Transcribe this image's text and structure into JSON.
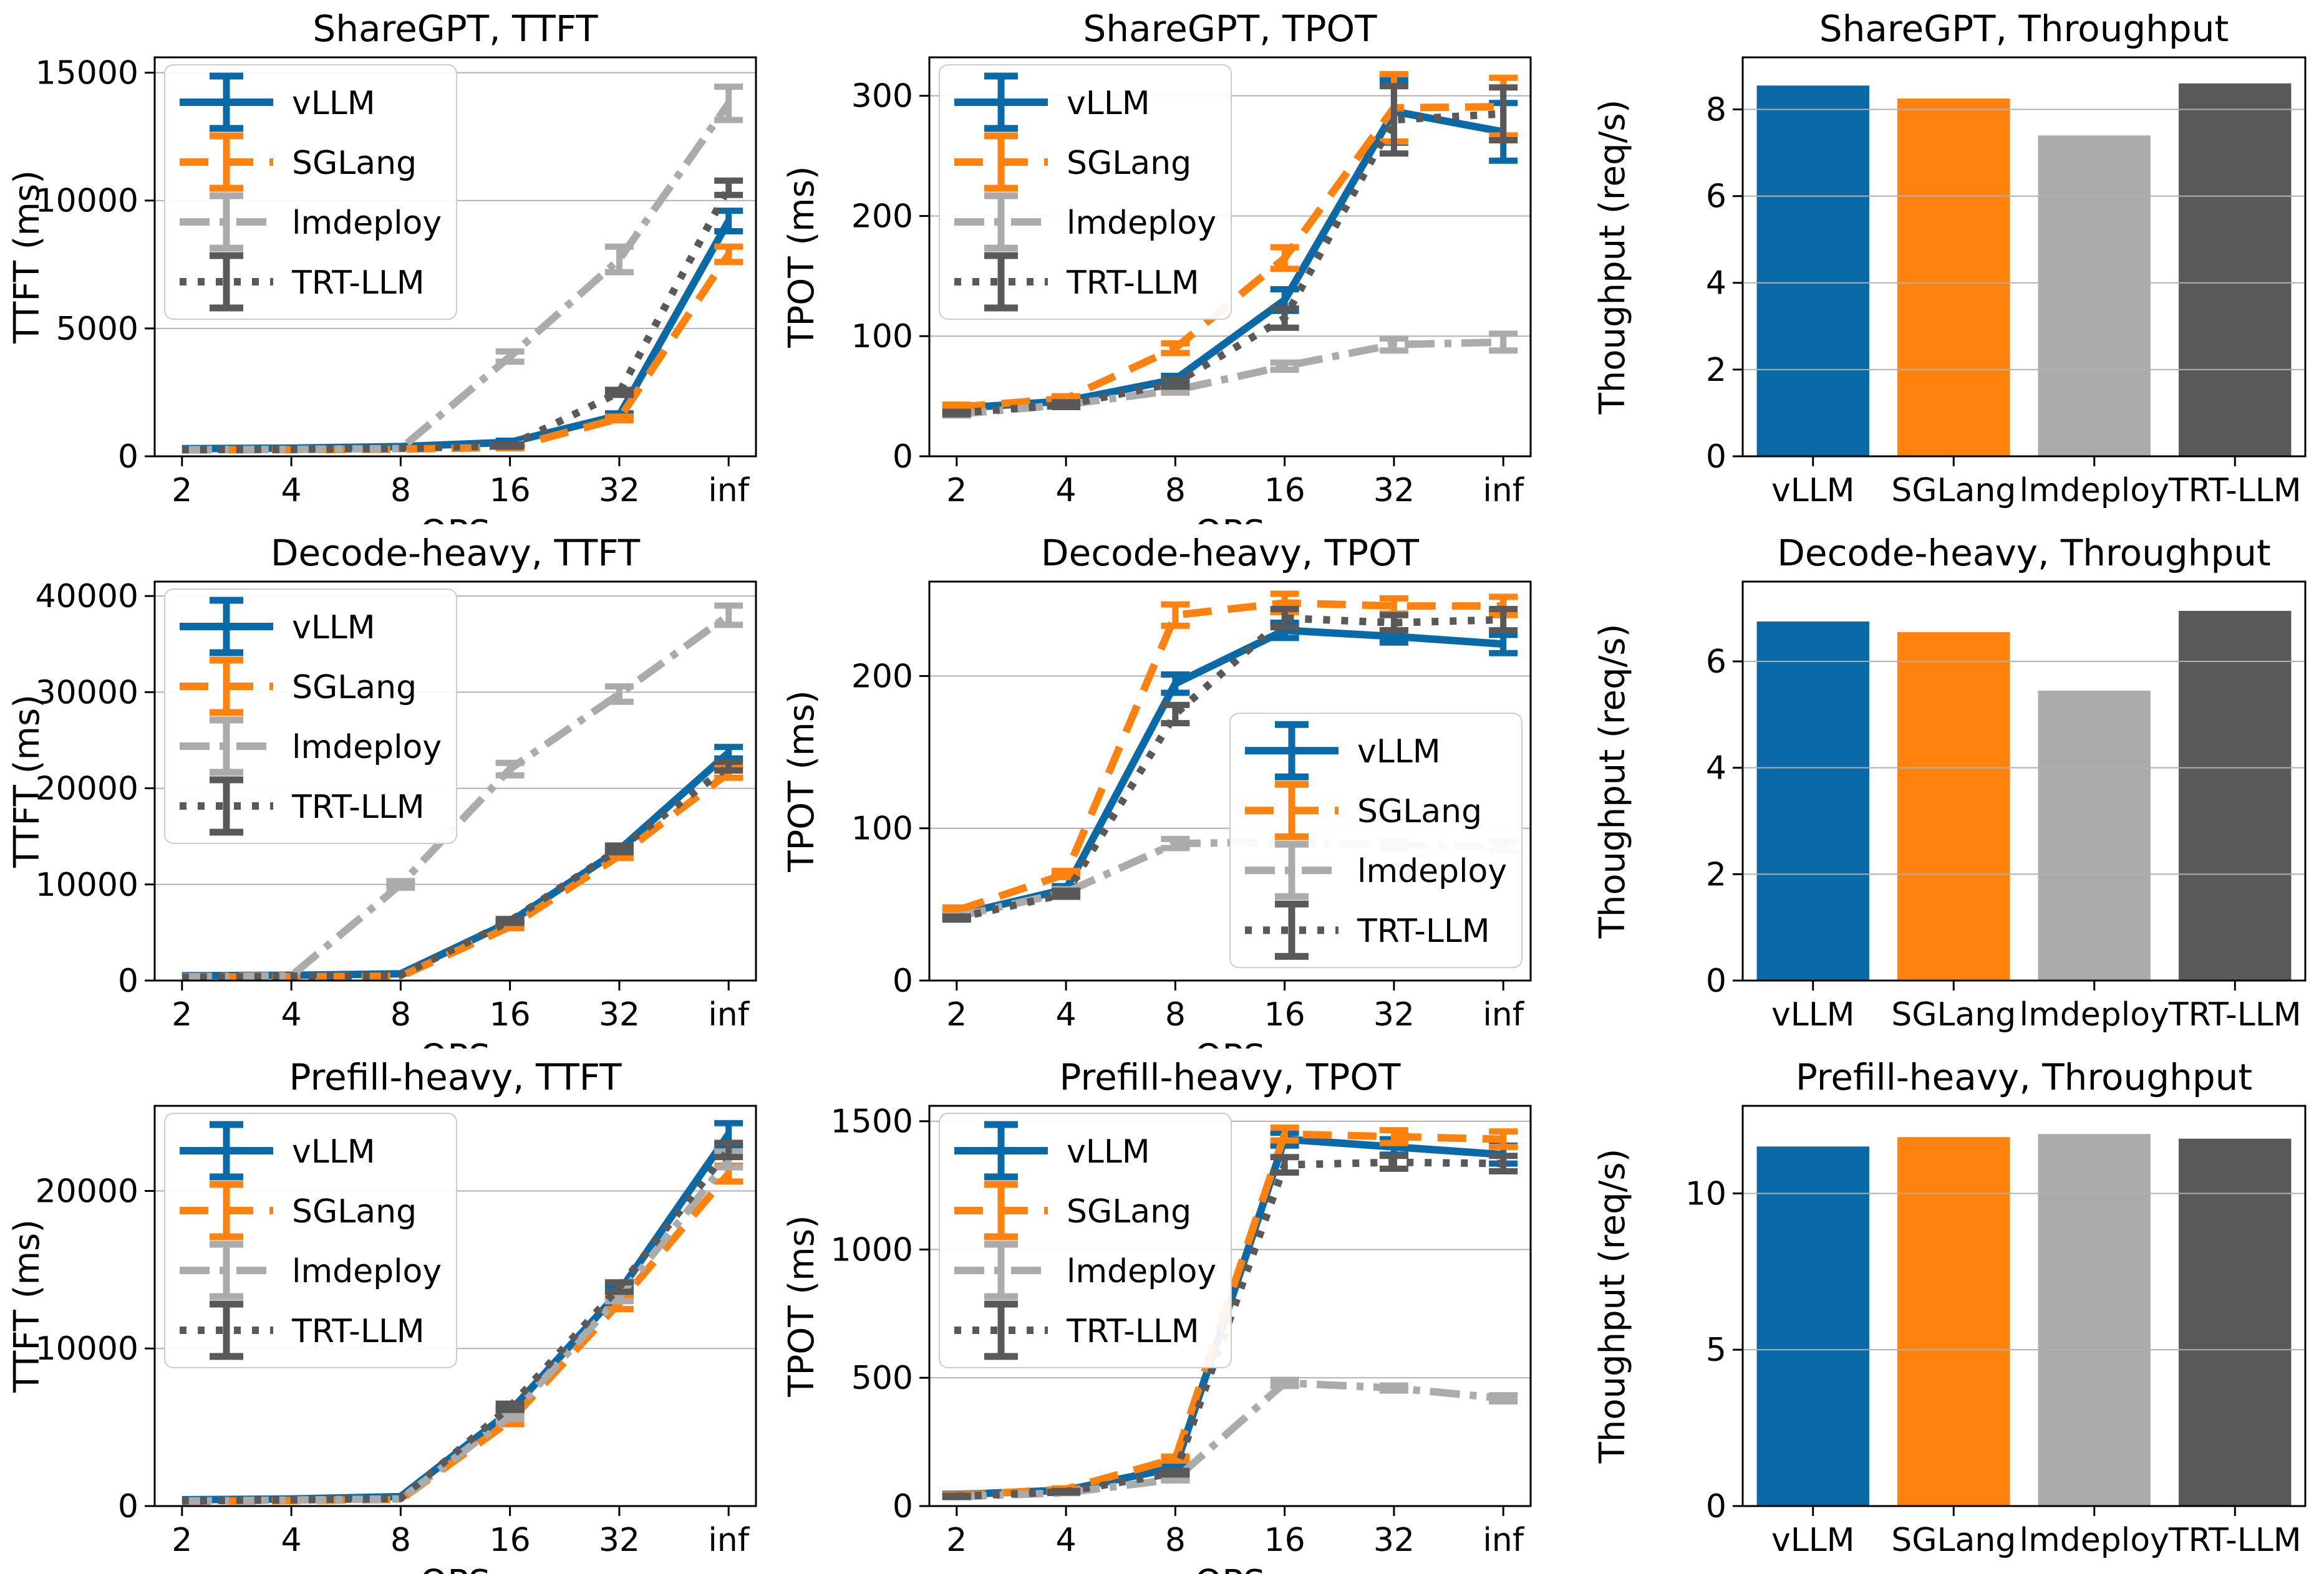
{
  "figure": {
    "background": "#ffffff",
    "axis_color": "#000000",
    "grid_color": "#b0b0b0",
    "series_colors": {
      "vLLM": "#0a6aa8",
      "SGLang": "#ff820e",
      "lmdeploy": "#ababab",
      "TRT-LLM": "#595959"
    }
  },
  "chart_data": [
    {
      "id": "sharegpt-ttft",
      "type": "line",
      "title": "ShareGPT, TTFT",
      "xlabel": "QPS",
      "ylabel": "TTFT (ms)",
      "x_categories": [
        "2",
        "4",
        "8",
        "16",
        "32",
        "inf"
      ],
      "yticks": [
        0,
        5000,
        10000,
        15000
      ],
      "ylim": [
        0,
        15600
      ],
      "grid": true,
      "legend": {
        "show": true,
        "pos": "upper-left"
      },
      "series": [
        {
          "name": "vLLM",
          "color": "#0a6aa8",
          "style": "solid",
          "values": [
            300,
            320,
            380,
            550,
            1600,
            9200
          ],
          "errors": [
            0,
            0,
            0,
            60,
            80,
            400
          ]
        },
        {
          "name": "SGLang",
          "color": "#ff820e",
          "style": "dashed",
          "values": [
            250,
            260,
            280,
            350,
            1480,
            7900
          ],
          "errors": [
            0,
            0,
            0,
            40,
            70,
            300
          ]
        },
        {
          "name": "lmdeploy",
          "color": "#ababab",
          "style": "dashdot",
          "values": [
            260,
            270,
            300,
            3900,
            7700,
            13800
          ],
          "errors": [
            0,
            0,
            0,
            200,
            500,
            650
          ]
        },
        {
          "name": "TRT-LLM",
          "color": "#595959",
          "style": "dotted",
          "values": [
            260,
            270,
            310,
            420,
            2500,
            10500
          ],
          "errors": [
            0,
            0,
            0,
            40,
            100,
            280
          ]
        }
      ]
    },
    {
      "id": "sharegpt-tpot",
      "type": "line",
      "title": "ShareGPT, TPOT",
      "xlabel": "QPS",
      "ylabel": "TPOT (ms)",
      "x_categories": [
        "2",
        "4",
        "8",
        "16",
        "32",
        "inf"
      ],
      "yticks": [
        0,
        100,
        200,
        300
      ],
      "ylim": [
        0,
        332
      ],
      "grid": true,
      "legend": {
        "show": true,
        "pos": "upper-left"
      },
      "series": [
        {
          "name": "vLLM",
          "color": "#0a6aa8",
          "style": "solid",
          "values": [
            40,
            46,
            64,
            130,
            287,
            270
          ],
          "errors": [
            2,
            2,
            3,
            9,
            26,
            24
          ]
        },
        {
          "name": "SGLang",
          "color": "#ff820e",
          "style": "dashed",
          "values": [
            41,
            48,
            90,
            165,
            290,
            291
          ],
          "errors": [
            2,
            2,
            4,
            9,
            28,
            24
          ]
        },
        {
          "name": "lmdeploy",
          "color": "#ababab",
          "style": "dashdot",
          "values": [
            35,
            43,
            55,
            75,
            93,
            95
          ],
          "errors": [
            1,
            2,
            2,
            3,
            5,
            7
          ]
        },
        {
          "name": "TRT-LLM",
          "color": "#595959",
          "style": "dotted",
          "values": [
            36,
            43,
            61,
            115,
            280,
            285
          ],
          "errors": [
            1,
            2,
            3,
            8,
            28,
            22
          ]
        }
      ]
    },
    {
      "id": "sharegpt-throughput",
      "type": "bar",
      "title": "ShareGPT, Throughput",
      "ylabel": "Thoughput (req/s)",
      "categories": [
        "vLLM",
        "SGLang",
        "lmdeploy",
        "TRT-LLM"
      ],
      "values": [
        8.55,
        8.25,
        7.4,
        8.6
      ],
      "bar_colors": [
        "#0a6aa8",
        "#ff820e",
        "#ababab",
        "#595959"
      ],
      "yticks": [
        0,
        2,
        4,
        6,
        8
      ],
      "ylim": [
        0,
        9.2
      ],
      "grid": true
    },
    {
      "id": "decode-heavy-ttft",
      "type": "line",
      "title": "Decode-heavy, TTFT",
      "xlabel": "QPS",
      "ylabel": "TTFT (ms)",
      "x_categories": [
        "2",
        "4",
        "8",
        "16",
        "32",
        "inf"
      ],
      "yticks": [
        0,
        10000,
        20000,
        30000,
        40000
      ],
      "ylim": [
        0,
        41500
      ],
      "grid": true,
      "legend": {
        "show": true,
        "pos": "upper-left"
      },
      "series": [
        {
          "name": "vLLM",
          "color": "#0a6aa8",
          "style": "solid",
          "values": [
            500,
            550,
            700,
            6100,
            13600,
            23700
          ],
          "errors": [
            0,
            0,
            0,
            150,
            250,
            600
          ]
        },
        {
          "name": "SGLang",
          "color": "#ff820e",
          "style": "dashed",
          "values": [
            350,
            400,
            450,
            5600,
            13000,
            21600
          ],
          "errors": [
            0,
            0,
            0,
            150,
            250,
            500
          ]
        },
        {
          "name": "lmdeploy",
          "color": "#ababab",
          "style": "dashdot",
          "values": [
            400,
            500,
            10000,
            22000,
            29800,
            38000
          ],
          "errors": [
            0,
            0,
            350,
            650,
            800,
            1000
          ]
        },
        {
          "name": "TRT-LLM",
          "color": "#595959",
          "style": "dotted",
          "values": [
            350,
            450,
            550,
            6200,
            13700,
            22300
          ],
          "errors": [
            0,
            0,
            0,
            200,
            350,
            450
          ]
        }
      ]
    },
    {
      "id": "decode-heavy-tpot",
      "type": "line",
      "title": "Decode-heavy, TPOT",
      "xlabel": "QPS",
      "ylabel": "TPOT (ms)",
      "x_categories": [
        "2",
        "4",
        "8",
        "16",
        "32",
        "inf"
      ],
      "yticks": [
        0,
        100,
        200
      ],
      "ylim": [
        0,
        262
      ],
      "grid": true,
      "legend": {
        "show": true,
        "pos": "center-right"
      },
      "series": [
        {
          "name": "vLLM",
          "color": "#0a6aa8",
          "style": "solid",
          "values": [
            43,
            60,
            195,
            230,
            226,
            221
          ],
          "errors": [
            2,
            2,
            6,
            5,
            4,
            6
          ]
        },
        {
          "name": "SGLang",
          "color": "#ff820e",
          "style": "dashed",
          "values": [
            46,
            70,
            240,
            248,
            246,
            246
          ],
          "errors": [
            2,
            2,
            7,
            6,
            5,
            6
          ]
        },
        {
          "name": "lmdeploy",
          "color": "#ababab",
          "style": "dashdot",
          "values": [
            42,
            58,
            90,
            91,
            89,
            88
          ],
          "errors": [
            1,
            2,
            3,
            2,
            2,
            3
          ]
        },
        {
          "name": "TRT-LLM",
          "color": "#595959",
          "style": "dotted",
          "values": [
            41,
            57,
            175,
            238,
            235,
            237
          ],
          "errors": [
            1,
            2,
            6,
            6,
            5,
            7
          ]
        }
      ]
    },
    {
      "id": "decode-heavy-throughput",
      "type": "bar",
      "title": "Decode-heavy, Throughput",
      "ylabel": "Thoughput (req/s)",
      "categories": [
        "vLLM",
        "SGLang",
        "lmdeploy",
        "TRT-LLM"
      ],
      "values": [
        6.75,
        6.55,
        5.45,
        6.95
      ],
      "bar_colors": [
        "#0a6aa8",
        "#ff820e",
        "#ababab",
        "#595959"
      ],
      "yticks": [
        0,
        2,
        4,
        6
      ],
      "ylim": [
        0,
        7.5
      ],
      "grid": true
    },
    {
      "id": "prefill-heavy-ttft",
      "type": "line",
      "title": "Prefill-heavy, TTFT",
      "xlabel": "QPS",
      "ylabel": "TTFT (ms)",
      "x_categories": [
        "2",
        "4",
        "8",
        "16",
        "32",
        "inf"
      ],
      "yticks": [
        0,
        10000,
        20000
      ],
      "ylim": [
        0,
        25400
      ],
      "grid": true,
      "legend": {
        "show": true,
        "pos": "upper-left"
      },
      "series": [
        {
          "name": "vLLM",
          "color": "#0a6aa8",
          "style": "solid",
          "values": [
            400,
            450,
            600,
            6000,
            13600,
            23600
          ],
          "errors": [
            0,
            0,
            0,
            150,
            300,
            700
          ]
        },
        {
          "name": "SGLang",
          "color": "#ff820e",
          "style": "dashed",
          "values": [
            300,
            350,
            420,
            5400,
            12900,
            21100
          ],
          "errors": [
            0,
            0,
            0,
            200,
            400,
            500
          ]
        },
        {
          "name": "lmdeploy",
          "color": "#ababab",
          "style": "dashdot",
          "values": [
            320,
            380,
            450,
            5700,
            13300,
            22000
          ],
          "errors": [
            0,
            0,
            0,
            150,
            300,
            500
          ]
        },
        {
          "name": "TRT-LLM",
          "color": "#595959",
          "style": "dotted",
          "values": [
            330,
            400,
            480,
            6300,
            13900,
            22600
          ],
          "errors": [
            0,
            0,
            0,
            200,
            300,
            450
          ]
        }
      ]
    },
    {
      "id": "prefill-heavy-tpot",
      "type": "line",
      "title": "Prefill-heavy, TPOT",
      "xlabel": "QPS",
      "ylabel": "TPOT (ms)",
      "x_categories": [
        "2",
        "4",
        "8",
        "16",
        "32",
        "inf"
      ],
      "yticks": [
        0,
        500,
        1000,
        1500
      ],
      "ylim": [
        0,
        1560
      ],
      "grid": true,
      "legend": {
        "show": true,
        "pos": "upper-left"
      },
      "series": [
        {
          "name": "vLLM",
          "color": "#0a6aa8",
          "style": "solid",
          "values": [
            45,
            62,
            150,
            1430,
            1400,
            1370
          ],
          "errors": [
            3,
            3,
            7,
            25,
            30,
            35
          ]
        },
        {
          "name": "SGLang",
          "color": "#ff820e",
          "style": "dashed",
          "values": [
            42,
            66,
            185,
            1450,
            1440,
            1430
          ],
          "errors": [
            3,
            3,
            8,
            25,
            25,
            30
          ]
        },
        {
          "name": "lmdeploy",
          "color": "#ababab",
          "style": "dashdot",
          "values": [
            36,
            52,
            105,
            480,
            460,
            420
          ],
          "errors": [
            2,
            2,
            5,
            12,
            10,
            12
          ]
        },
        {
          "name": "TRT-LLM",
          "color": "#595959",
          "style": "dotted",
          "values": [
            38,
            56,
            130,
            1330,
            1340,
            1335
          ],
          "errors": [
            2,
            3,
            7,
            30,
            25,
            30
          ]
        }
      ]
    },
    {
      "id": "prefill-heavy-throughput",
      "type": "bar",
      "title": "Prefill-heavy, Throughput",
      "ylabel": "Thoughput (req/s)",
      "categories": [
        "vLLM",
        "SGLang",
        "lmdeploy",
        "TRT-LLM"
      ],
      "values": [
        11.5,
        11.8,
        11.9,
        11.75
      ],
      "bar_colors": [
        "#0a6aa8",
        "#ff820e",
        "#ababab",
        "#595959"
      ],
      "yticks": [
        0,
        5,
        10
      ],
      "ylim": [
        0,
        12.8
      ],
      "grid": true
    }
  ]
}
